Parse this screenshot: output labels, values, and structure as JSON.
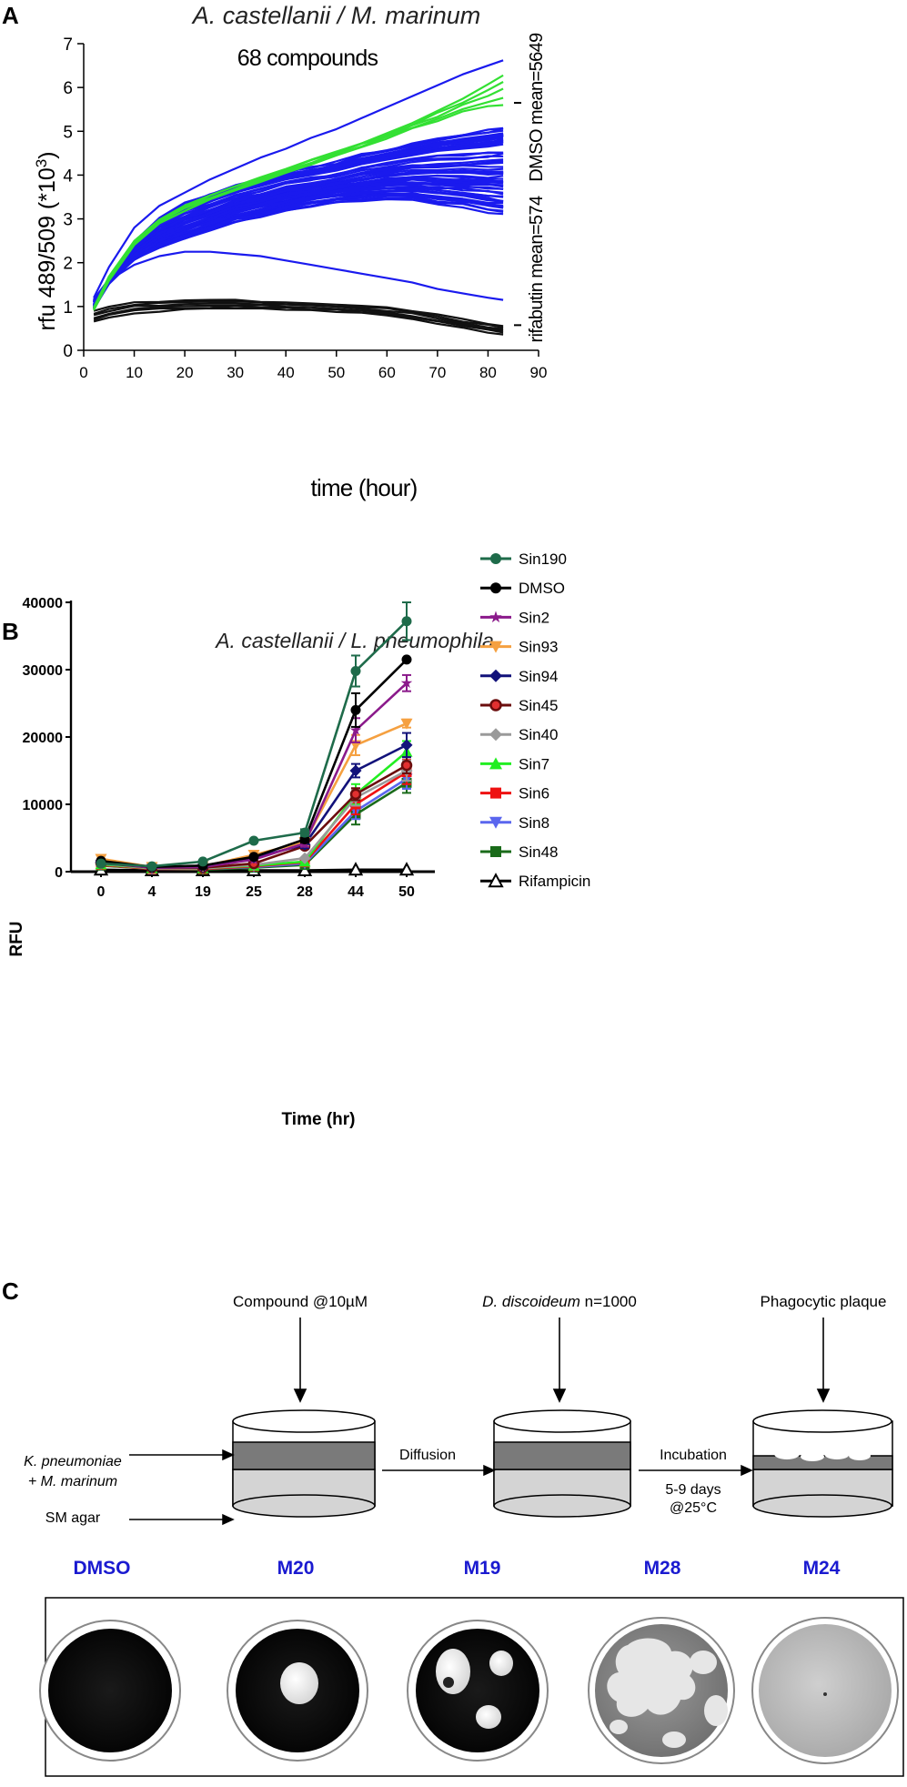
{
  "panels": {
    "a": "A",
    "b": "B",
    "c": "C"
  },
  "chart_data": [
    {
      "id": "A",
      "type": "line",
      "title": "A. castellanii / M. marinum",
      "annotation": "68 compounds",
      "xlabel": "time (hour)",
      "ylabel": "rfu 489/509 (*10^3)",
      "xlim": [
        0,
        90
      ],
      "ylim": [
        0,
        7
      ],
      "xticks": [
        0,
        10,
        20,
        30,
        40,
        50,
        60,
        70,
        80,
        90
      ],
      "yticks": [
        0,
        1,
        2,
        3,
        4,
        5,
        6,
        7
      ],
      "reference_labels": [
        {
          "text": "DMSO mean=5649",
          "value": 5.649
        },
        {
          "text": "rifabutin mean=574",
          "value": 0.574
        }
      ],
      "x": [
        2,
        5,
        10,
        15,
        20,
        25,
        30,
        35,
        40,
        45,
        50,
        55,
        60,
        65,
        70,
        75,
        80,
        83
      ],
      "groups": [
        {
          "name": "compounds",
          "color": "#1a1aee",
          "count": 62,
          "representative": [
            [
              1.1,
              1.6,
              2.4,
              2.9,
              3.2,
              3.4,
              3.6,
              3.75,
              3.9,
              4.0,
              4.1,
              4.25,
              4.35,
              4.45,
              4.55,
              4.6,
              4.65,
              4.7
            ],
            [
              1.2,
              1.9,
              2.8,
              3.3,
              3.6,
              3.9,
              4.15,
              4.4,
              4.6,
              4.85,
              5.05,
              5.3,
              5.55,
              5.8,
              6.05,
              6.3,
              6.5,
              6.62
            ],
            [
              0.95,
              1.55,
              2.1,
              2.4,
              2.6,
              2.8,
              3.0,
              3.1,
              3.25,
              3.35,
              3.45,
              3.5,
              3.55,
              3.55,
              3.45,
              3.4,
              3.3,
              3.25
            ],
            [
              1.1,
              1.6,
              1.95,
              2.15,
              2.25,
              2.25,
              2.2,
              2.15,
              2.05,
              1.95,
              1.85,
              1.75,
              1.65,
              1.55,
              1.4,
              1.3,
              1.2,
              1.15
            ]
          ]
        },
        {
          "name": "DMSO",
          "color": "#33e033",
          "count": 5,
          "representative": [
            [
              1.0,
              1.7,
              2.5,
              3.0,
              3.3,
              3.55,
              3.75,
              3.95,
              4.15,
              4.35,
              4.55,
              4.75,
              4.95,
              5.2,
              5.45,
              5.75,
              6.05,
              6.3
            ],
            [
              0.9,
              1.6,
              2.4,
              2.9,
              3.2,
              3.45,
              3.65,
              3.85,
              4.05,
              4.25,
              4.45,
              4.65,
              4.85,
              5.05,
              5.25,
              5.45,
              5.55,
              5.6
            ]
          ]
        },
        {
          "name": "rifabutin",
          "color": "#111111",
          "count": 6,
          "representative": [
            [
              0.9,
              1.0,
              1.1,
              1.12,
              1.15,
              1.15,
              1.15,
              1.12,
              1.1,
              1.08,
              1.05,
              1.02,
              0.98,
              0.9,
              0.8,
              0.7,
              0.6,
              0.55
            ],
            [
              0.65,
              0.75,
              0.85,
              0.9,
              0.93,
              0.95,
              0.95,
              0.95,
              0.93,
              0.9,
              0.88,
              0.85,
              0.8,
              0.72,
              0.62,
              0.52,
              0.42,
              0.38
            ]
          ]
        }
      ]
    },
    {
      "id": "B",
      "type": "line",
      "title": "A. castellanii / L. pneumophila",
      "xlabel": "Time (hr)",
      "ylabel": "RFU",
      "categories": [
        "0",
        "4",
        "19",
        "25",
        "28",
        "44",
        "50"
      ],
      "ylim": [
        0,
        40000
      ],
      "yticks": [
        0,
        10000,
        20000,
        30000,
        40000
      ],
      "legend_position": "right",
      "series": [
        {
          "name": "Sin190",
          "color": "#1e6b4a",
          "marker": "circle",
          "values": [
            1200,
            800,
            1500,
            4600,
            5800,
            29800,
            37200
          ],
          "err": [
            200,
            150,
            200,
            300,
            500,
            2300,
            2800
          ]
        },
        {
          "name": "DMSO",
          "color": "#000000",
          "marker": "circle",
          "values": [
            1600,
            700,
            900,
            2200,
            4800,
            24000,
            31500
          ],
          "err": [
            200,
            100,
            150,
            300,
            500,
            2500,
            400
          ]
        },
        {
          "name": "Sin2",
          "color": "#8b1a8b",
          "marker": "star",
          "values": [
            1400,
            600,
            700,
            1800,
            4200,
            21000,
            28000
          ],
          "err": [
            150,
            100,
            100,
            200,
            500,
            1800,
            1200
          ]
        },
        {
          "name": "Sin93",
          "color": "#f5a040",
          "marker": "triangle-down",
          "values": [
            1900,
            700,
            800,
            2500,
            4400,
            18800,
            22000
          ],
          "err": [
            300,
            100,
            100,
            400,
            600,
            1500,
            600
          ]
        },
        {
          "name": "Sin94",
          "color": "#12127a",
          "marker": "diamond",
          "values": [
            1400,
            600,
            700,
            2100,
            4000,
            15000,
            18800
          ],
          "err": [
            200,
            100,
            100,
            300,
            500,
            1000,
            1800
          ]
        },
        {
          "name": "Sin45",
          "color": "#6b0d0d",
          "marker": "circle-open",
          "values": [
            1300,
            600,
            600,
            1200,
            3800,
            11500,
            15800
          ],
          "err": [
            150,
            100,
            100,
            200,
            400,
            900,
            1200
          ]
        },
        {
          "name": "Sin40",
          "color": "#9a9a9a",
          "marker": "diamond",
          "values": [
            1200,
            500,
            500,
            1000,
            2000,
            11000,
            15000
          ],
          "err": [
            150,
            100,
            100,
            200,
            300,
            1200,
            1500
          ]
        },
        {
          "name": "Sin7",
          "color": "#22ee22",
          "marker": "triangle-up",
          "values": [
            1100,
            500,
            500,
            900,
            1500,
            11500,
            17800
          ],
          "err": [
            150,
            100,
            100,
            200,
            300,
            1500,
            1600
          ]
        },
        {
          "name": "Sin6",
          "color": "#ee1111",
          "marker": "square",
          "values": [
            1000,
            400,
            400,
            800,
            1400,
            10000,
            14800
          ],
          "err": [
            150,
            100,
            100,
            200,
            300,
            1500,
            1800
          ]
        },
        {
          "name": "Sin8",
          "color": "#5a66ee",
          "marker": "triangle-down",
          "values": [
            1000,
            400,
            400,
            700,
            1200,
            9000,
            13800
          ],
          "err": [
            150,
            100,
            100,
            200,
            300,
            1200,
            1500
          ]
        },
        {
          "name": "Sin48",
          "color": "#1a6b1a",
          "marker": "square",
          "values": [
            900,
            400,
            300,
            600,
            1000,
            8500,
            13200
          ],
          "err": [
            150,
            100,
            100,
            150,
            300,
            1500,
            1500
          ]
        },
        {
          "name": "Rifampicin",
          "color": "#000000",
          "marker": "triangle-up-open",
          "values": [
            300,
            200,
            200,
            200,
            200,
            300,
            300
          ],
          "err": [
            50,
            50,
            50,
            50,
            50,
            50,
            50
          ]
        }
      ]
    }
  ],
  "schematic": {
    "compound": "Compound @10µM",
    "dicty_species": "D. discoideum",
    "dicty_count": " n=1000",
    "plaque": "Phagocytic plaque",
    "kp_line1": "K. pneumoniae",
    "kp_line2": "+ M. marinum",
    "sm_agar": "SM agar",
    "diffusion": "Diffusion",
    "incubation": "Incubation",
    "days": "5-9 days",
    "temp": "@25°C"
  },
  "wells": [
    {
      "label": "DMSO"
    },
    {
      "label": "M20"
    },
    {
      "label": "M19"
    },
    {
      "label": "M28"
    },
    {
      "label": "M24"
    }
  ],
  "colors": {
    "well_label": "#1a1ad0",
    "compounds": "#1a1aee",
    "dmso_a": "#33e033",
    "rifabutin": "#111111"
  }
}
